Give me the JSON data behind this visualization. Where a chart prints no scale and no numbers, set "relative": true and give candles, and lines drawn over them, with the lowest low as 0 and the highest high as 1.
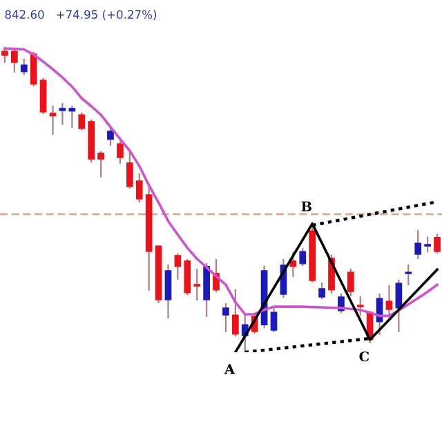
{
  "chart_data": {
    "type": "candlestick",
    "relative": true,
    "categories": [
      null,
      null,
      null,
      null,
      null,
      null,
      null,
      null,
      null,
      null,
      null,
      null,
      null,
      null,
      null,
      null,
      null,
      null,
      null,
      null,
      null,
      null,
      null,
      null,
      null,
      null,
      null,
      null,
      null,
      null,
      null,
      null,
      null,
      null,
      null,
      null,
      null,
      null,
      null,
      null,
      null,
      null,
      null,
      null,
      null,
      null
    ],
    "ohlc": [
      [
        0.986,
        1.0,
        0.95,
        0.973
      ],
      [
        0.986,
        0.991,
        0.919,
        0.95
      ],
      [
        0.919,
        0.959,
        0.91,
        0.941
      ],
      [
        0.977,
        0.982,
        0.873,
        0.878
      ],
      [
        0.891,
        0.896,
        0.783,
        0.787
      ],
      [
        0.783,
        0.805,
        0.715,
        0.774
      ],
      [
        0.792,
        0.814,
        0.747,
        0.799
      ],
      [
        0.79,
        0.805,
        0.738,
        0.799
      ],
      [
        0.778,
        0.783,
        0.729,
        0.733
      ],
      [
        0.756,
        0.76,
        0.624,
        0.633
      ],
      [
        0.652,
        0.656,
        0.575,
        0.633
      ],
      [
        0.697,
        0.733,
        0.679,
        0.724
      ],
      [
        0.683,
        0.688,
        0.62,
        0.638
      ],
      [
        0.62,
        0.656,
        0.538,
        0.543
      ],
      [
        0.561,
        0.584,
        0.493,
        0.502
      ],
      [
        0.516,
        0.552,
        0.204,
        0.33
      ],
      [
        0.348,
        0.348,
        0.163,
        0.172
      ],
      [
        0.172,
        0.285,
        0.113,
        0.267
      ],
      [
        0.317,
        0.321,
        0.24,
        0.281
      ],
      [
        0.299,
        0.303,
        0.19,
        0.195
      ],
      [
        0.222,
        0.271,
        0.172,
        0.217
      ],
      [
        0.172,
        0.29,
        0.118,
        0.281
      ],
      [
        0.258,
        0.303,
        0.199,
        0.204
      ],
      [
        0.122,
        0.158,
        0.068,
        0.145
      ],
      [
        0.122,
        0.204,
        0.054,
        0.059
      ],
      [
        0.054,
        0.122,
        0.0,
        0.09
      ],
      [
        0.118,
        0.118,
        0.063,
        0.068
      ],
      [
        0.09,
        0.281,
        0.081,
        0.267
      ],
      [
        0.072,
        0.145,
        0.068,
        0.131
      ],
      [
        0.19,
        0.303,
        0.181,
        0.285
      ],
      [
        0.299,
        0.326,
        0.249,
        0.281
      ],
      [
        0.29,
        0.339,
        0.285,
        0.33
      ],
      [
        0.398,
        0.421,
        0.231,
        0.235
      ],
      [
        0.181,
        0.226,
        0.176,
        0.208
      ],
      [
        0.308,
        0.317,
        0.195,
        0.204
      ],
      [
        0.136,
        0.19,
        0.131,
        0.181
      ],
      [
        0.262,
        0.271,
        0.186,
        0.199
      ],
      [
        0.154,
        0.181,
        0.122,
        0.149
      ],
      [
        0.131,
        0.131,
        0.032,
        0.041
      ],
      [
        0.1,
        0.19,
        0.059,
        0.176
      ],
      [
        0.167,
        0.217,
        0.122,
        0.14
      ],
      [
        0.145,
        0.235,
        0.068,
        0.226
      ],
      [
        0.258,
        0.285,
        0.222,
        0.262
      ],
      [
        0.321,
        0.398,
        0.308,
        0.357
      ],
      [
        0.348,
        0.376,
        0.33,
        0.353
      ],
      [
        0.376,
        0.385,
        0.326,
        0.33
      ]
    ],
    "series": [
      {
        "type": "line",
        "color": "#cc55cc",
        "line_style": "solid",
        "values": [
          0.995,
          0.994,
          0.992,
          0.975,
          0.952,
          0.927,
          0.9,
          0.87,
          0.832,
          0.806,
          0.778,
          0.738,
          0.699,
          0.66,
          0.61,
          0.547,
          0.49,
          0.43,
          0.385,
          0.342,
          0.306,
          0.278,
          0.249,
          0.221,
          0.164,
          0.124,
          0.125,
          0.139,
          0.149,
          0.149,
          0.149,
          0.149,
          0.148,
          0.147,
          0.146,
          0.145,
          0.142,
          0.138,
          0.13,
          0.119,
          0.119,
          0.137,
          0.157,
          0.177,
          0.198,
          0.221
        ]
      },
      {
        "type": "line",
        "color": "#000000",
        "line_style": "solid",
        "values": [
          null,
          null,
          null,
          null,
          null,
          null,
          null,
          null,
          null,
          null,
          null,
          null,
          null,
          null,
          null,
          null,
          null,
          null,
          null,
          null,
          null,
          null,
          null,
          null,
          0.0,
          null,
          null,
          null,
          null,
          null,
          null,
          null,
          0.421,
          null,
          null,
          null,
          null,
          null,
          0.041,
          null,
          null,
          null,
          null,
          null,
          null,
          0.271
        ]
      },
      {
        "type": "line",
        "color": "#000000",
        "line_style": "dotted",
        "values": [
          null,
          null,
          null,
          null,
          null,
          null,
          null,
          null,
          null,
          null,
          null,
          null,
          null,
          null,
          null,
          null,
          null,
          null,
          null,
          null,
          null,
          null,
          null,
          null,
          null,
          0.0,
          null,
          null,
          null,
          null,
          null,
          null,
          null,
          null,
          null,
          null,
          null,
          null,
          0.045,
          null,
          null,
          null,
          null,
          null,
          null,
          null
        ]
      },
      {
        "type": "line",
        "color": "#000000",
        "line_style": "dotted",
        "values": [
          null,
          null,
          null,
          null,
          null,
          null,
          null,
          null,
          null,
          null,
          null,
          null,
          null,
          null,
          null,
          null,
          null,
          null,
          null,
          null,
          null,
          null,
          null,
          null,
          null,
          null,
          null,
          null,
          null,
          null,
          null,
          null,
          0.416,
          null,
          null,
          null,
          null,
          null,
          null,
          null,
          null,
          null,
          null,
          null,
          null,
          0.493
        ]
      }
    ],
    "ref_lines": [
      {
        "axis": "y",
        "value": 0.452,
        "color": "#e0a890",
        "line_style": "dashed"
      }
    ],
    "annotations": [
      "842.60   +74.95 (+0.27%)",
      {
        "text": "A",
        "y": 0.0
      },
      {
        "text": "B",
        "y": 0.421
      },
      {
        "text": "C",
        "y": 0.041
      }
    ],
    "legend": false
  }
}
